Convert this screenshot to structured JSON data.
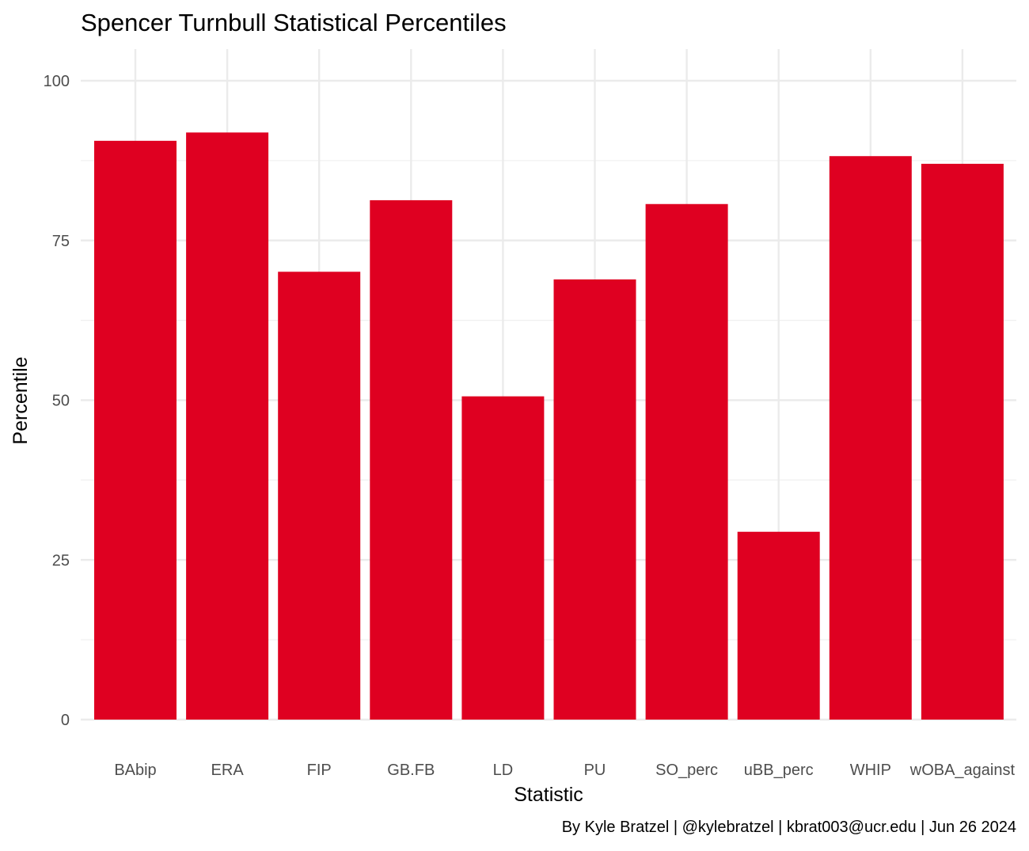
{
  "chart_data": {
    "type": "bar",
    "title": "Spencer Turnbull Statistical Percentiles",
    "xlabel": "Statistic",
    "ylabel": "Percentile",
    "caption": "By Kyle Bratzel | @kylebratzel | kbrat003@ucr.edu | Jun 26 2024",
    "categories": [
      "BAbip",
      "ERA",
      "FIP",
      "GB.FB",
      "LD",
      "PU",
      "SO_perc",
      "uBB_perc",
      "WHIP",
      "wOBA_against"
    ],
    "values": [
      90.6,
      91.9,
      70.1,
      81.3,
      50.6,
      68.9,
      80.7,
      29.4,
      88.2,
      87.0
    ],
    "ylim": [
      0,
      100
    ],
    "yticks": [
      "0",
      "25",
      "50",
      "75",
      "100"
    ],
    "grid": true,
    "legend": "none",
    "bar_color": "#DF0021"
  }
}
